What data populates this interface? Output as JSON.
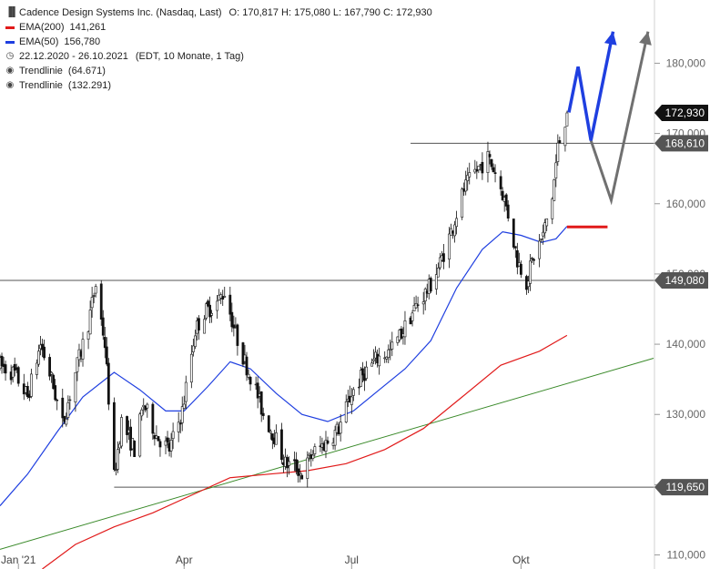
{
  "header": {
    "title": "Cadence Design Systems Inc. (Nasdaq, Last)",
    "ohlc": "O: 170,817  H: 175,080  L: 167,790  C: 172,930",
    "ema200_label": "EMA(200)",
    "ema200_value": "141,261",
    "ema50_label": "EMA(50)",
    "ema50_value": "156,780",
    "period": "22.12.2020 - 26.10.2021",
    "period_note": "(EDT, 10 Monate, 1 Tag)",
    "trend1_label": "Trendlinie",
    "trend1_value": "(64.671)",
    "trend2_label": "Trendlinie",
    "trend2_value": "(132.291)"
  },
  "colors": {
    "ema200": "#e11a1a",
    "ema50": "#1f3fe0",
    "trendline": "#3a8a2a",
    "projection_primary": "#1f3fe0",
    "projection_alternative": "#707070",
    "price": "#111111",
    "level_line": "#555555"
  },
  "chart_data": {
    "type": "candlestick",
    "y_axis": {
      "range": [
        108000,
        189000
      ],
      "ticks": [
        "110,000",
        "120,000",
        "130,000",
        "140,000",
        "150,000",
        "160,000",
        "170,000",
        "180,000"
      ],
      "tick_values": [
        110000,
        120000,
        130000,
        140000,
        150000,
        160000,
        170000,
        180000
      ]
    },
    "x_axis": {
      "labels": [
        "Jan '21",
        "Apr",
        "Jul",
        "Okt"
      ],
      "label_dates": [
        "2021-01-01",
        "2021-04-01",
        "2021-07-01",
        "2021-10-01"
      ],
      "range": [
        "2020-12-22",
        "2021-12-12"
      ]
    },
    "level_lines": [
      {
        "value": 168610,
        "label": "168,610",
        "from": "2021-08-02",
        "to": "2021-12-12"
      },
      {
        "value": 149080,
        "label": "149,080",
        "from": "2020-12-22",
        "to": "2021-12-12"
      },
      {
        "value": 119650,
        "label": "119,650",
        "from": "2021-02-22",
        "to": "2021-12-12"
      }
    ],
    "last_price": {
      "value": 172930,
      "label": "172,930"
    },
    "trendline": {
      "from": {
        "date": "2020-12-22",
        "value": 110800
      },
      "to": {
        "date": "2021-12-12",
        "value": 138000
      }
    },
    "ema200_target": {
      "value": 156700,
      "from": "2021-10-26",
      "to": "2021-11-17"
    },
    "projection_primary": [
      {
        "date": "2021-10-27",
        "value": 173000
      },
      {
        "date": "2021-11-01",
        "value": 179500
      },
      {
        "date": "2021-11-08",
        "value": 169000
      },
      {
        "date": "2021-11-20",
        "value": 184500
      }
    ],
    "projection_alternative": [
      {
        "date": "2021-11-08",
        "value": 169000
      },
      {
        "date": "2021-11-19",
        "value": 160500
      },
      {
        "date": "2021-12-09",
        "value": 184500
      }
    ],
    "price_path": [
      {
        "date": "2020-12-22",
        "value": 137000
      },
      {
        "date": "2020-12-30",
        "value": 135800
      },
      {
        "date": "2021-01-06",
        "value": 132500
      },
      {
        "date": "2021-01-13",
        "value": 140000
      },
      {
        "date": "2021-01-19",
        "value": 135000
      },
      {
        "date": "2021-01-25",
        "value": 128500
      },
      {
        "date": "2021-02-01",
        "value": 136000
      },
      {
        "date": "2021-02-08",
        "value": 143000
      },
      {
        "date": "2021-02-12",
        "value": 148500
      },
      {
        "date": "2021-02-17",
        "value": 140000
      },
      {
        "date": "2021-02-22",
        "value": 121000
      },
      {
        "date": "2021-02-26",
        "value": 129000
      },
      {
        "date": "2021-03-05",
        "value": 125000
      },
      {
        "date": "2021-03-10",
        "value": 131500
      },
      {
        "date": "2021-03-17",
        "value": 127000
      },
      {
        "date": "2021-03-24",
        "value": 125000
      },
      {
        "date": "2021-03-31",
        "value": 130500
      },
      {
        "date": "2021-04-07",
        "value": 142000
      },
      {
        "date": "2021-04-12",
        "value": 144500
      },
      {
        "date": "2021-04-19",
        "value": 146000
      },
      {
        "date": "2021-04-23",
        "value": 147500
      },
      {
        "date": "2021-04-29",
        "value": 141500
      },
      {
        "date": "2021-05-04",
        "value": 137500
      },
      {
        "date": "2021-05-10",
        "value": 133500
      },
      {
        "date": "2021-05-14",
        "value": 130000
      },
      {
        "date": "2021-05-20",
        "value": 127000
      },
      {
        "date": "2021-05-26",
        "value": 123000
      },
      {
        "date": "2021-06-01",
        "value": 122500
      },
      {
        "date": "2021-06-04",
        "value": 121500
      },
      {
        "date": "2021-06-10",
        "value": 124500
      },
      {
        "date": "2021-06-17",
        "value": 126000
      },
      {
        "date": "2021-06-24",
        "value": 128000
      },
      {
        "date": "2021-07-01",
        "value": 133000
      },
      {
        "date": "2021-07-08",
        "value": 136000
      },
      {
        "date": "2021-07-15",
        "value": 138000
      },
      {
        "date": "2021-07-22",
        "value": 139000
      },
      {
        "date": "2021-07-29",
        "value": 142000
      },
      {
        "date": "2021-08-05",
        "value": 145500
      },
      {
        "date": "2021-08-12",
        "value": 148000
      },
      {
        "date": "2021-08-18",
        "value": 151500
      },
      {
        "date": "2021-08-24",
        "value": 156000
      },
      {
        "date": "2021-08-31",
        "value": 162000
      },
      {
        "date": "2021-09-06",
        "value": 164500
      },
      {
        "date": "2021-09-13",
        "value": 166500
      },
      {
        "date": "2021-09-17",
        "value": 164500
      },
      {
        "date": "2021-09-21",
        "value": 161500
      },
      {
        "date": "2021-09-24",
        "value": 158500
      },
      {
        "date": "2021-09-29",
        "value": 152000
      },
      {
        "date": "2021-10-04",
        "value": 149000
      },
      {
        "date": "2021-10-08",
        "value": 152500
      },
      {
        "date": "2021-10-13",
        "value": 155500
      },
      {
        "date": "2021-10-18",
        "value": 161000
      },
      {
        "date": "2021-10-21",
        "value": 168000
      },
      {
        "date": "2021-10-26",
        "value": 172930
      }
    ],
    "ema50_path": [
      {
        "date": "2020-12-22",
        "value": 117000
      },
      {
        "date": "2021-01-06",
        "value": 121500
      },
      {
        "date": "2021-01-22",
        "value": 127500
      },
      {
        "date": "2021-02-05",
        "value": 132500
      },
      {
        "date": "2021-02-22",
        "value": 136000
      },
      {
        "date": "2021-03-08",
        "value": 133500
      },
      {
        "date": "2021-03-22",
        "value": 130500
      },
      {
        "date": "2021-04-01",
        "value": 130500
      },
      {
        "date": "2021-04-14",
        "value": 134000
      },
      {
        "date": "2021-04-26",
        "value": 137500
      },
      {
        "date": "2021-05-07",
        "value": 136500
      },
      {
        "date": "2021-05-21",
        "value": 133000
      },
      {
        "date": "2021-06-04",
        "value": 130000
      },
      {
        "date": "2021-06-18",
        "value": 129000
      },
      {
        "date": "2021-07-02",
        "value": 130500
      },
      {
        "date": "2021-07-16",
        "value": 133500
      },
      {
        "date": "2021-07-30",
        "value": 136500
      },
      {
        "date": "2021-08-13",
        "value": 140500
      },
      {
        "date": "2021-08-27",
        "value": 148000
      },
      {
        "date": "2021-09-10",
        "value": 153500
      },
      {
        "date": "2021-09-21",
        "value": 156000
      },
      {
        "date": "2021-10-01",
        "value": 155500
      },
      {
        "date": "2021-10-12",
        "value": 154500
      },
      {
        "date": "2021-10-20",
        "value": 155000
      },
      {
        "date": "2021-10-26",
        "value": 156780
      }
    ],
    "ema200_path": [
      {
        "date": "2021-01-14",
        "value": 108000
      },
      {
        "date": "2021-02-01",
        "value": 111500
      },
      {
        "date": "2021-02-22",
        "value": 114000
      },
      {
        "date": "2021-03-15",
        "value": 116000
      },
      {
        "date": "2021-04-05",
        "value": 118500
      },
      {
        "date": "2021-04-26",
        "value": 121000
      },
      {
        "date": "2021-05-17",
        "value": 121500
      },
      {
        "date": "2021-06-07",
        "value": 122000
      },
      {
        "date": "2021-06-28",
        "value": 123000
      },
      {
        "date": "2021-07-19",
        "value": 125000
      },
      {
        "date": "2021-08-09",
        "value": 128000
      },
      {
        "date": "2021-08-30",
        "value": 132500
      },
      {
        "date": "2021-09-20",
        "value": 137000
      },
      {
        "date": "2021-10-11",
        "value": 139000
      },
      {
        "date": "2021-10-26",
        "value": 141261
      }
    ]
  }
}
